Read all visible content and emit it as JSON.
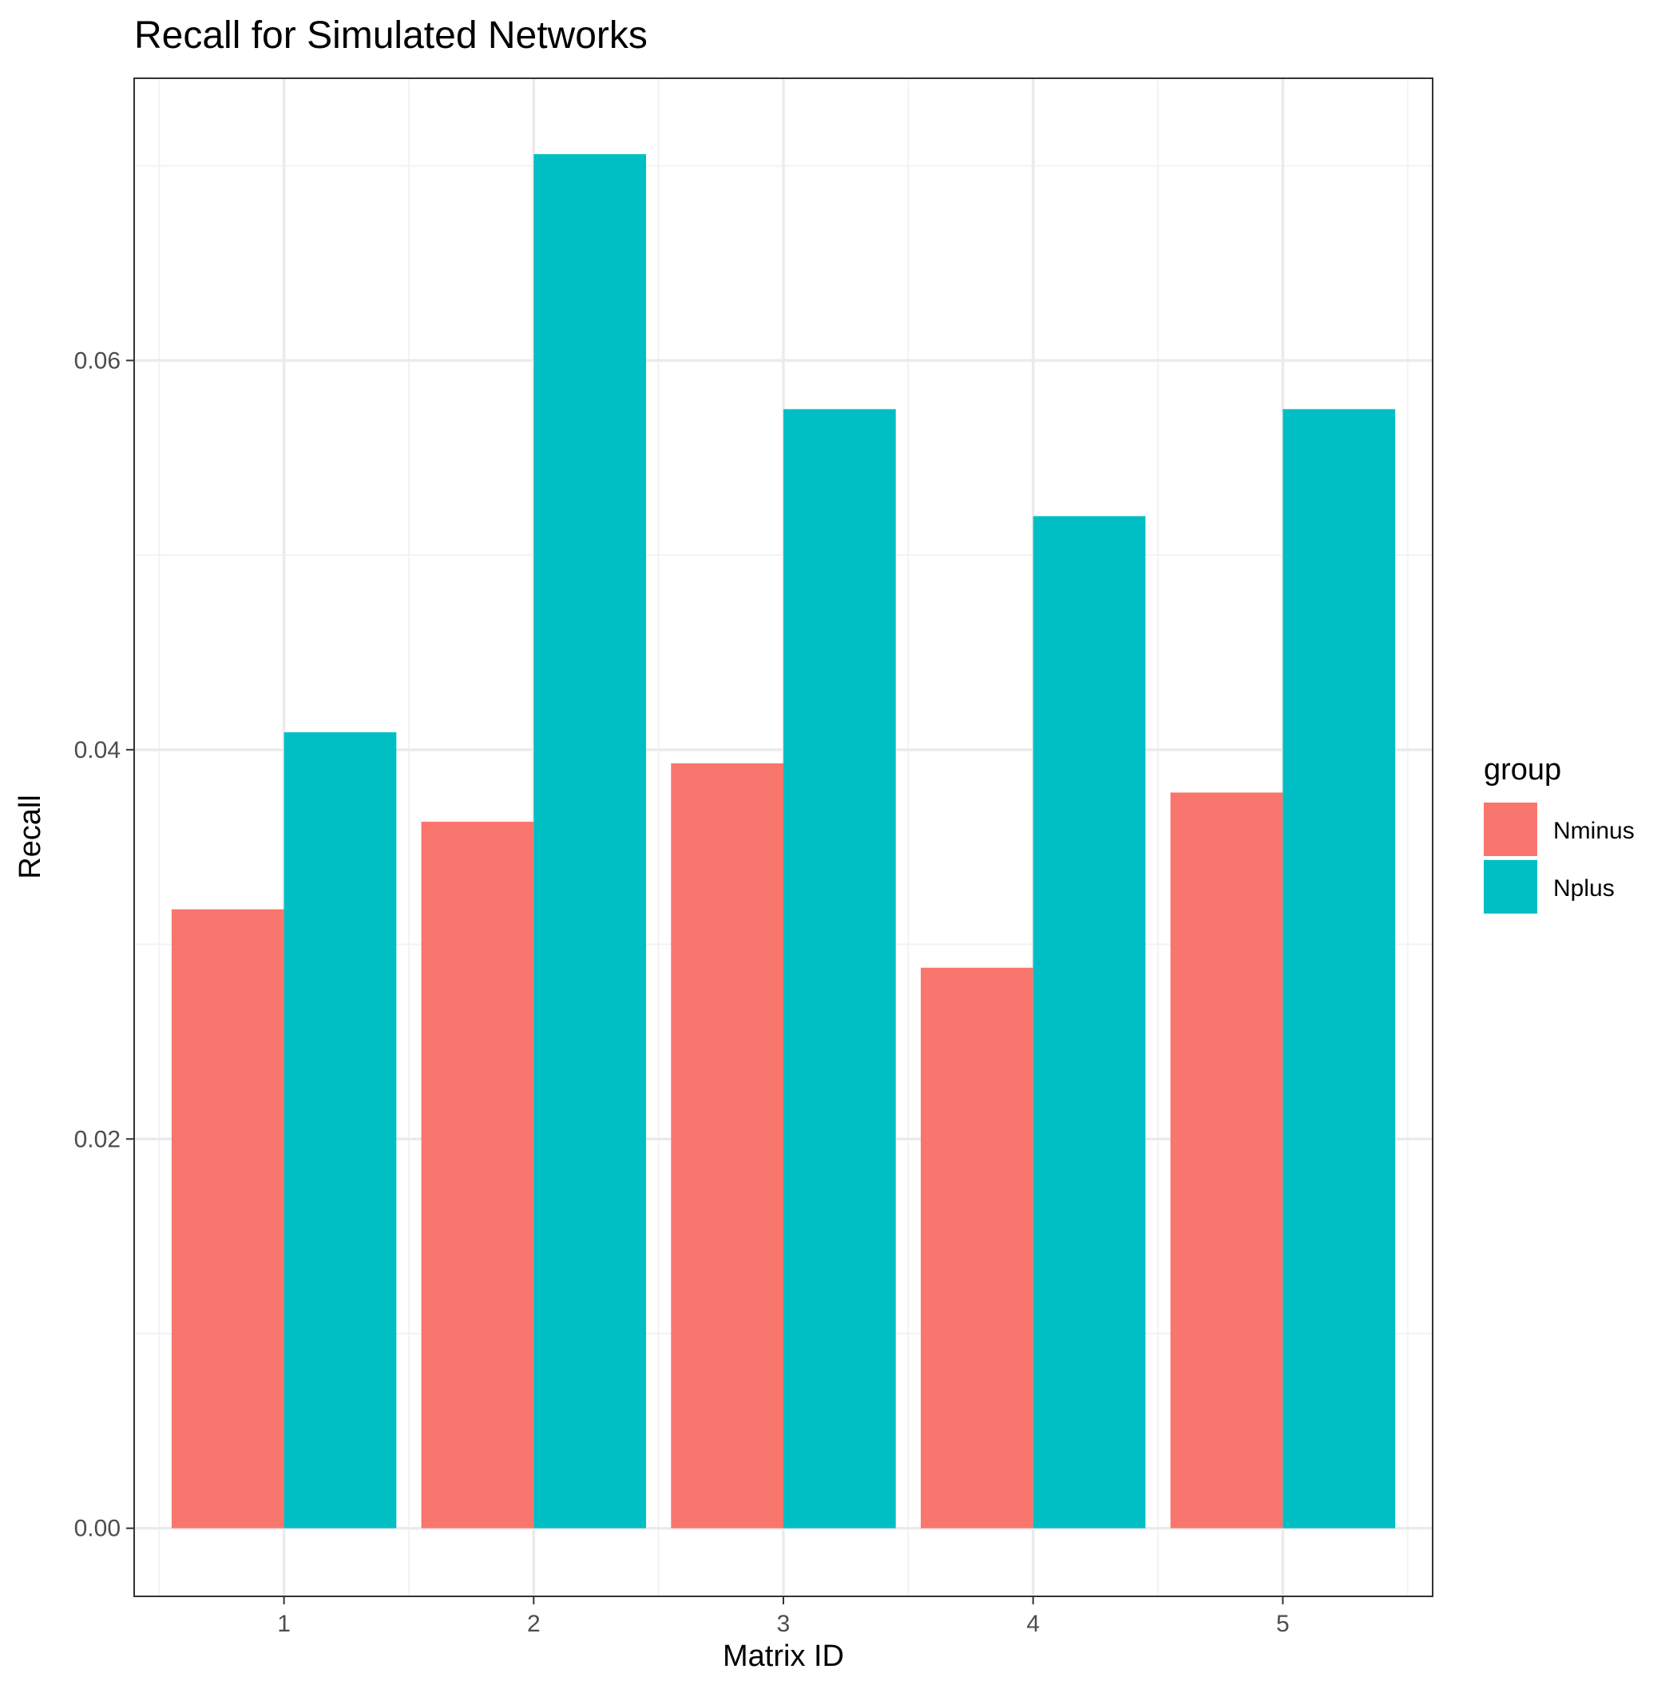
{
  "chart_data": {
    "type": "bar",
    "title": "Recall for Simulated Networks",
    "xlabel": "Matrix ID",
    "ylabel": "Recall",
    "categories": [
      "1",
      "2",
      "3",
      "4",
      "5"
    ],
    "series": [
      {
        "name": "Nminus",
        "color": "#F8766D",
        "values": [
          0.0318,
          0.0363,
          0.0393,
          0.0288,
          0.0378
        ]
      },
      {
        "name": "Nplus",
        "color": "#00BFC4",
        "values": [
          0.0409,
          0.0706,
          0.0575,
          0.052,
          0.0575
        ]
      }
    ],
    "ylim": [
      -0.0035,
      0.0745
    ],
    "yticks": [
      0.0,
      0.02,
      0.04,
      0.06
    ],
    "ytick_labels": [
      "0.00",
      "0.02",
      "0.04",
      "0.06"
    ],
    "grid": true,
    "legend": {
      "title": "group",
      "position": "right"
    },
    "theme": {
      "panel_border": "#333333",
      "grid_major": "#ebebeb",
      "grid_minor": "#f3f3f3"
    }
  }
}
